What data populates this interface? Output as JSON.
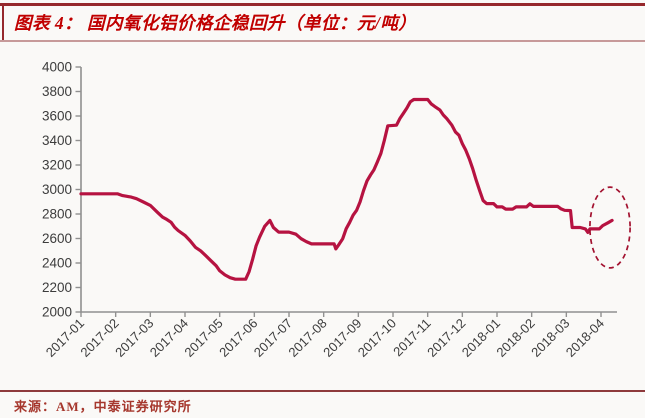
{
  "header": {
    "title": "图表 4： 国内氧化铝价格企稳回升（单位：元/吨）"
  },
  "footer": {
    "source": "来源：AM，中泰证券研究所"
  },
  "colors": {
    "title_red": "#C00000",
    "top_rule": "#96282C",
    "title_rule": "#C79A9A",
    "footer_rule": "#8E3A3C",
    "source_text": "#A6372D",
    "line": "#B61341",
    "ellipse": "#A31230",
    "axis": "#909090",
    "tick_label": "#3C3C3C"
  },
  "chart_data": {
    "type": "line",
    "title": "国内氧化铝价格企稳回升",
    "unit": "元/吨",
    "x_labels": [
      "2017-01",
      "2017-02",
      "2017-03",
      "2017-04",
      "2017-05",
      "2017-06",
      "2017-07",
      "2017-08",
      "2017-09",
      "2017-10",
      "2017-11",
      "2017-12",
      "2018-01",
      "2018-02",
      "2018-03",
      "2018-04"
    ],
    "ylim": [
      2000,
      4000
    ],
    "y_ticks": [
      2000,
      2200,
      2400,
      2600,
      2800,
      3000,
      3200,
      3400,
      3600,
      3800,
      4000
    ],
    "grid": false,
    "legend": "none",
    "series": [
      {
        "name": "国内氧化铝价格（元/吨）",
        "points": [
          [
            0,
            2965
          ],
          [
            1.05,
            2965
          ],
          [
            1.2,
            2950
          ],
          [
            1.45,
            2938
          ],
          [
            1.6,
            2925
          ],
          [
            1.8,
            2898
          ],
          [
            2,
            2870
          ],
          [
            2.2,
            2815
          ],
          [
            2.35,
            2775
          ],
          [
            2.45,
            2760
          ],
          [
            2.6,
            2732
          ],
          [
            2.7,
            2692
          ],
          [
            2.8,
            2665
          ],
          [
            3,
            2625
          ],
          [
            3.15,
            2580
          ],
          [
            3.3,
            2528
          ],
          [
            3.45,
            2500
          ],
          [
            3.6,
            2460
          ],
          [
            3.75,
            2418
          ],
          [
            3.9,
            2377
          ],
          [
            4,
            2336
          ],
          [
            4.15,
            2303
          ],
          [
            4.3,
            2280
          ],
          [
            4.45,
            2268
          ],
          [
            4.75,
            2268
          ],
          [
            4.85,
            2330
          ],
          [
            4.95,
            2430
          ],
          [
            5.05,
            2540
          ],
          [
            5.15,
            2610
          ],
          [
            5.3,
            2700
          ],
          [
            5.45,
            2748
          ],
          [
            5.55,
            2690
          ],
          [
            5.7,
            2652
          ],
          [
            6,
            2652
          ],
          [
            6.2,
            2635
          ],
          [
            6.35,
            2598
          ],
          [
            6.5,
            2575
          ],
          [
            6.65,
            2556
          ],
          [
            7.3,
            2556
          ],
          [
            7.35,
            2515
          ],
          [
            7.45,
            2556
          ],
          [
            7.55,
            2598
          ],
          [
            7.65,
            2680
          ],
          [
            7.75,
            2732
          ],
          [
            7.85,
            2790
          ],
          [
            7.95,
            2830
          ],
          [
            8.05,
            2900
          ],
          [
            8.15,
            2990
          ],
          [
            8.25,
            3070
          ],
          [
            8.35,
            3118
          ],
          [
            8.45,
            3160
          ],
          [
            8.55,
            3225
          ],
          [
            8.65,
            3295
          ],
          [
            8.75,
            3400
          ],
          [
            8.85,
            3520
          ],
          [
            9.1,
            3525
          ],
          [
            9.2,
            3580
          ],
          [
            9.3,
            3622
          ],
          [
            9.4,
            3665
          ],
          [
            9.5,
            3716
          ],
          [
            9.6,
            3735
          ],
          [
            10,
            3735
          ],
          [
            10.1,
            3700
          ],
          [
            10.2,
            3678
          ],
          [
            10.35,
            3650
          ],
          [
            10.45,
            3608
          ],
          [
            10.55,
            3580
          ],
          [
            10.7,
            3525
          ],
          [
            10.8,
            3470
          ],
          [
            10.9,
            3443
          ],
          [
            11,
            3375
          ],
          [
            11.1,
            3320
          ],
          [
            11.2,
            3250
          ],
          [
            11.3,
            3170
          ],
          [
            11.4,
            3075
          ],
          [
            11.5,
            2990
          ],
          [
            11.6,
            2910
          ],
          [
            11.7,
            2885
          ],
          [
            11.9,
            2885
          ],
          [
            12,
            2858
          ],
          [
            12.15,
            2858
          ],
          [
            12.25,
            2840
          ],
          [
            12.45,
            2840
          ],
          [
            12.55,
            2858
          ],
          [
            12.85,
            2858
          ],
          [
            12.95,
            2883
          ],
          [
            13.05,
            2862
          ],
          [
            13.75,
            2862
          ],
          [
            13.85,
            2842
          ],
          [
            13.95,
            2830
          ],
          [
            14.12,
            2828
          ],
          [
            14.17,
            2690
          ],
          [
            14.4,
            2690
          ],
          [
            14.55,
            2678
          ],
          [
            14.62,
            2650
          ],
          [
            14.68,
            2678
          ],
          [
            14.95,
            2678
          ],
          [
            15.05,
            2705
          ],
          [
            15.2,
            2728
          ],
          [
            15.32,
            2748
          ]
        ]
      }
    ],
    "annotation": {
      "type": "dashed-ellipse",
      "note": "价格企稳回升区域",
      "center": [
        15.26,
        2690
      ],
      "rx_months": 0.58,
      "ry_units": 330
    }
  }
}
